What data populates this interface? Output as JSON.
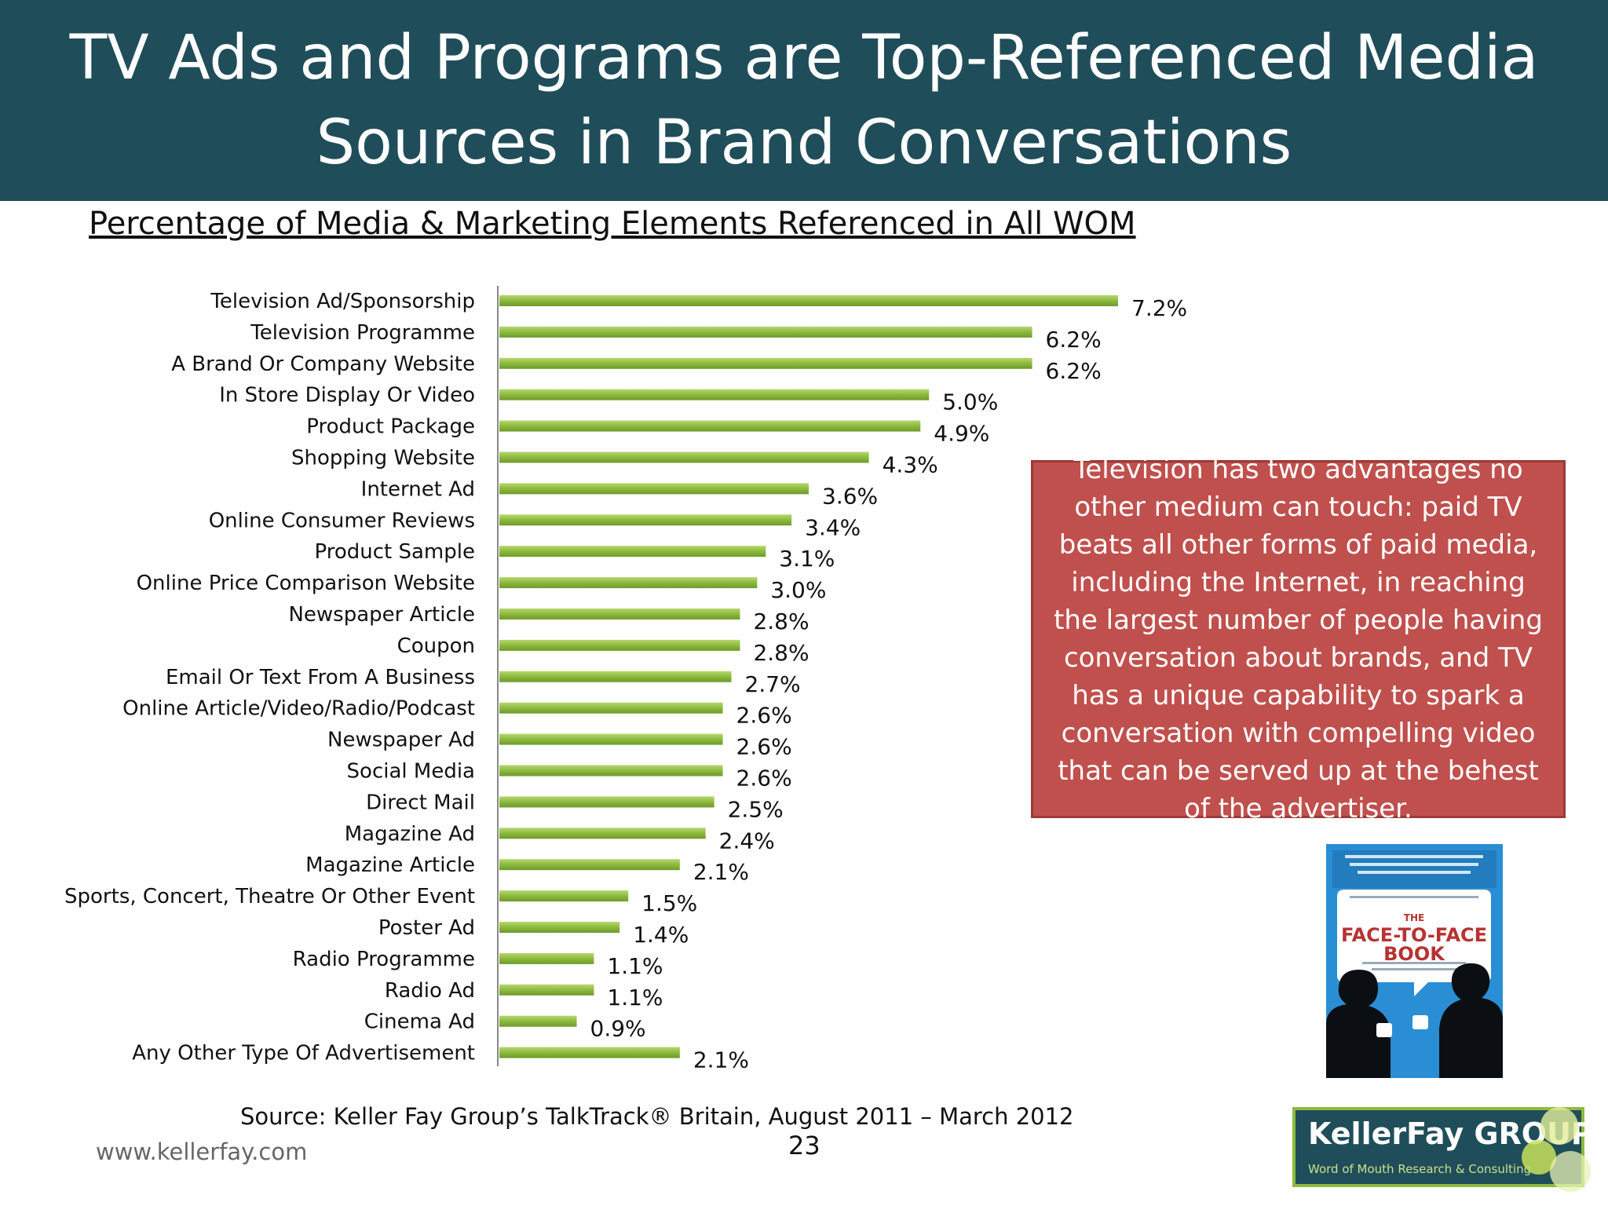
{
  "header": {
    "title": "TV Ads and Programs are Top-Referenced Media Sources in Brand Conversations"
  },
  "callout": {
    "text": "Television has two advantages no other medium can touch: paid TV beats all other forms of paid media, including the Internet, in reaching the largest number of people having conversation about brands, and TV has a unique capability to spark a conversation with compelling video that can be served up at the behest of the advertiser."
  },
  "book": {
    "icon": "face-to-face-book-cover",
    "title_line1": "THE",
    "title_line2": "FACE-TO-FACE",
    "title_line3": "BOOK"
  },
  "footer": {
    "source": "Source:  Keller Fay Group’s TalkTrack® Britain, August 2011 – March 2012",
    "page_number": "23",
    "website": "www.kellerfay.com"
  },
  "logo": {
    "name": "KellerFay GROUP",
    "tagline": "Word of Mouth Research & Consulting"
  },
  "colors": {
    "header_bg": "#1f4e5a",
    "bar": "#8dba3d",
    "callout_bg": "#c0504d"
  },
  "chart_data": {
    "type": "bar",
    "orientation": "horizontal",
    "title": "Percentage of Media & Marketing Elements Referenced in All WOM",
    "categories": [
      "Television Ad/Sponsorship",
      "Television Programme",
      "A Brand Or Company Website",
      "In Store Display Or Video",
      "Product Package",
      "Shopping Website",
      "Internet Ad",
      "Online Consumer Reviews",
      "Product Sample",
      "Online Price Comparison Website",
      "Newspaper Article",
      "Coupon",
      "Email Or Text From A Business",
      "Online Article/Video/Radio/Podcast",
      "Newspaper Ad",
      "Social Media",
      "Direct Mail",
      "Magazine Ad",
      "Magazine Article",
      "Sports, Concert, Theatre Or Other Event",
      "Poster Ad",
      "Radio Programme",
      "Radio Ad",
      "Cinema Ad",
      "Any Other Type Of Advertisement"
    ],
    "values": [
      7.2,
      6.2,
      6.2,
      5.0,
      4.9,
      4.3,
      3.6,
      3.4,
      3.1,
      3.0,
      2.8,
      2.8,
      2.7,
      2.6,
      2.6,
      2.6,
      2.5,
      2.4,
      2.1,
      1.5,
      1.4,
      1.1,
      1.1,
      0.9,
      2.1
    ],
    "value_labels": [
      "7.2%",
      "6.2%",
      "6.2%",
      "5.0%",
      "4.9%",
      "4.3%",
      "3.6%",
      "3.4%",
      "3.1%",
      "3.0%",
      "2.8%",
      "2.8%",
      "2.7%",
      "2.6%",
      "2.6%",
      "2.6%",
      "2.5%",
      "2.4%",
      "2.1%",
      "1.5%",
      "1.4%",
      "1.1%",
      "1.1%",
      "0.9%",
      "2.1%"
    ],
    "xlim": [
      0,
      7.2
    ],
    "grid": false,
    "legend": "none"
  }
}
